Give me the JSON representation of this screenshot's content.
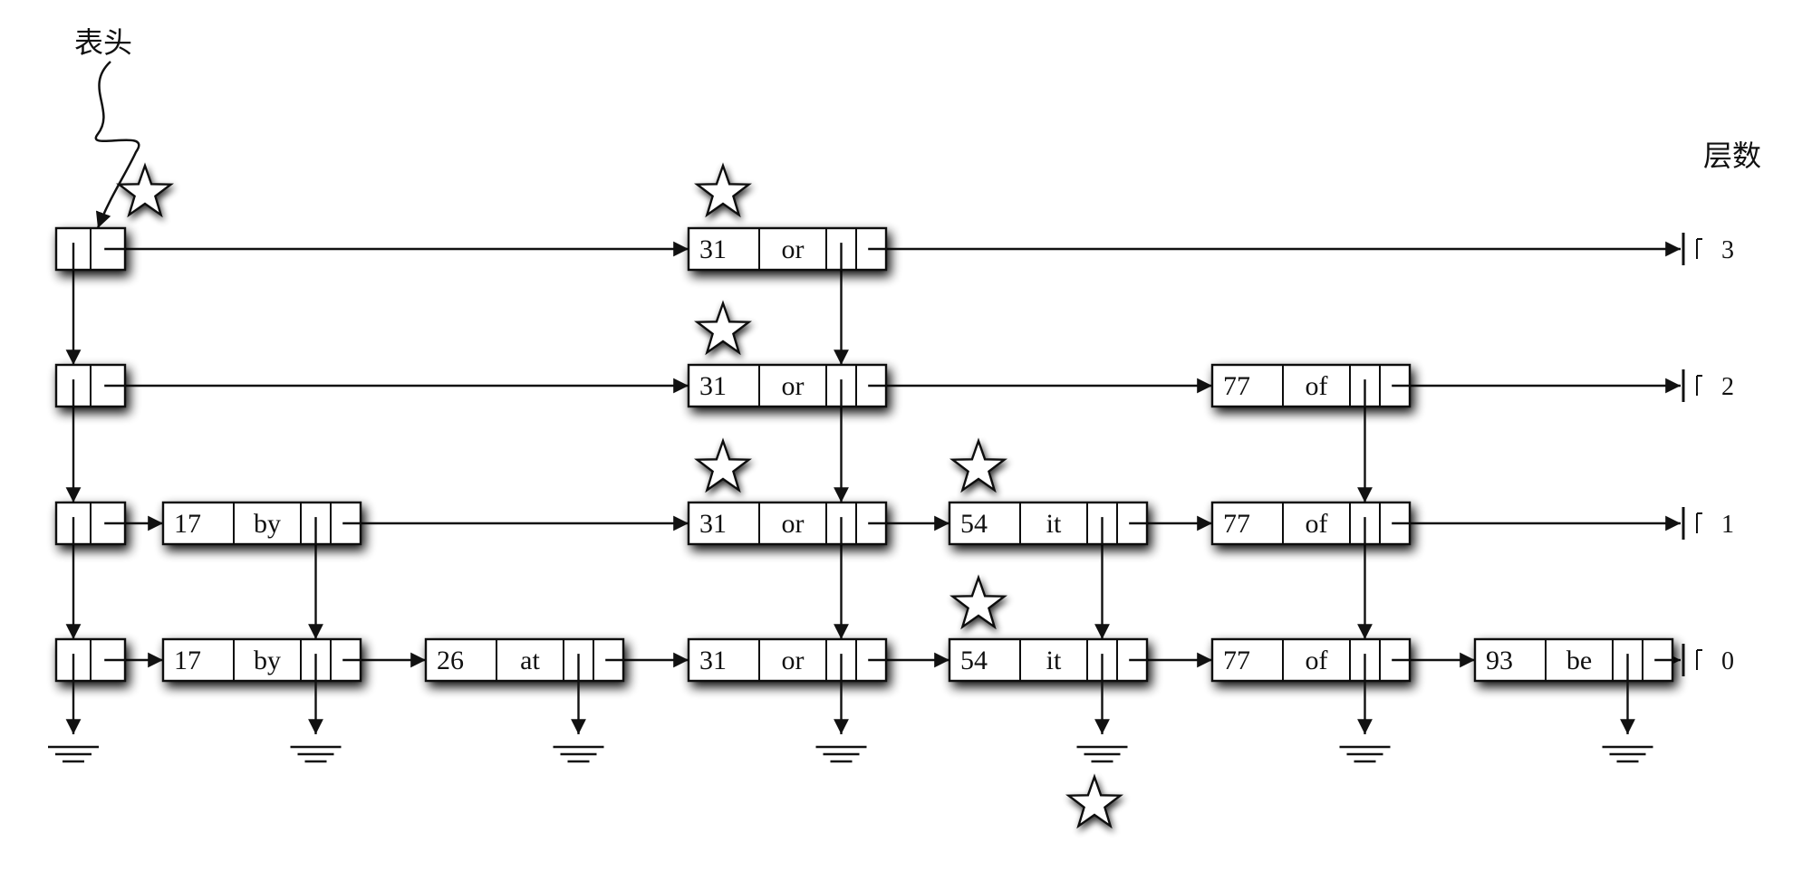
{
  "labels": {
    "head": "表头",
    "levels_title": "层数"
  },
  "levels": [
    "3",
    "2",
    "1",
    "0"
  ],
  "nodes": [
    {
      "key": "17",
      "value": "by",
      "top_level": 1
    },
    {
      "key": "26",
      "value": "at",
      "top_level": 0
    },
    {
      "key": "31",
      "value": "or",
      "top_level": 3
    },
    {
      "key": "54",
      "value": "it",
      "top_level": 1
    },
    {
      "key": "77",
      "value": "of",
      "top_level": 2
    },
    {
      "key": "93",
      "value": "be",
      "top_level": 0
    }
  ],
  "search_path_markers": [
    {
      "node": "head",
      "level": 3
    },
    {
      "node": "31",
      "level": 3
    },
    {
      "node": "31",
      "level": 2
    },
    {
      "node": "31",
      "level": 1
    },
    {
      "node": "54",
      "level": 1
    },
    {
      "node": "54",
      "level": 0
    },
    {
      "node": "54",
      "level": "null"
    }
  ],
  "colors": {
    "stroke": "#111111",
    "node_fill": "#ffffff",
    "shadow": "#000000",
    "background": "#ffffff"
  }
}
